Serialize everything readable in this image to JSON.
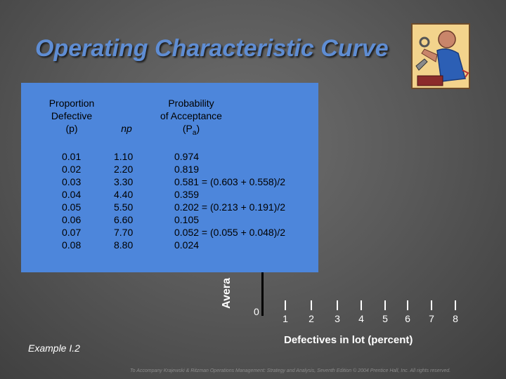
{
  "slide": {
    "title": "Operating Characteristic Curve",
    "y_axis_label_partial": "Avera",
    "x_axis_label": "Defectives in lot (percent)",
    "origin_label": "0",
    "x_ticks": [
      "1",
      "2",
      "3",
      "4",
      "5",
      "6",
      "7",
      "8"
    ],
    "example_label": "Example I.2",
    "footer": "To Accompany Krajewski & Ritzman Operations Management: Strategy and Analysis, Seventh Edition © 2004 Prentice Hall, Inc. All rights reserved."
  },
  "table": {
    "headers": {
      "proportion": [
        "Proportion",
        "Defective",
        "(p)"
      ],
      "np": "np",
      "probability": [
        "Probability",
        "of Acceptance"
      ],
      "pa_main": "(P",
      "pa_sub": "a",
      "pa_close": ")"
    },
    "rows": [
      {
        "p": "0.01",
        "np": "1.10",
        "pa": "0.974"
      },
      {
        "p": "0.02",
        "np": "2.20",
        "pa": "0.819"
      },
      {
        "p": "0.03",
        "np": "3.30",
        "pa": "0.581 = (0.603 + 0.558)/2"
      },
      {
        "p": "0.04",
        "np": "4.40",
        "pa": "0.359"
      },
      {
        "p": "0.05",
        "np": "5.50",
        "pa": "0.202 = (0.213 + 0.191)/2"
      },
      {
        "p": "0.06",
        "np": "6.60",
        "pa": "0.105"
      },
      {
        "p": "0.07",
        "np": "7.70",
        "pa": "0.052 = (0.055 + 0.048)/2"
      },
      {
        "p": "0.08",
        "np": "8.80",
        "pa": "0.024"
      }
    ]
  },
  "colors": {
    "title": "#5f8dd3",
    "panel": "#4d86db",
    "background": "#5a5a5a"
  },
  "icons": [
    "worker-clipart-icon"
  ]
}
